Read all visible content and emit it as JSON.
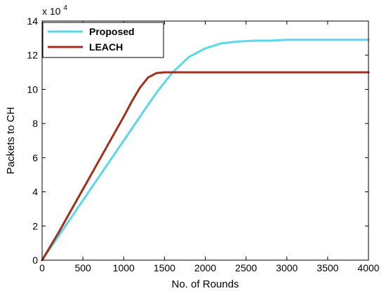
{
  "chart_data": {
    "type": "line",
    "title": "",
    "xlabel": "No. of Rounds",
    "ylabel": "Packets to CH",
    "y_multiplier_label": "x 10",
    "y_multiplier_exponent": "4",
    "xlim": [
      0,
      4000
    ],
    "ylim": [
      0,
      14
    ],
    "xticks": [
      0,
      500,
      1000,
      1500,
      2000,
      2500,
      3000,
      3500,
      4000
    ],
    "yticks": [
      0,
      2,
      4,
      6,
      8,
      10,
      12,
      14
    ],
    "grid": false,
    "legend_position": "top-left",
    "series": [
      {
        "name": "Proposed",
        "color": "#5ad8e8",
        "x": [
          0,
          200,
          400,
          600,
          800,
          1000,
          1200,
          1400,
          1600,
          1800,
          2000,
          2200,
          2400,
          2600,
          2800,
          3000,
          3500,
          4000
        ],
        "y": [
          0,
          1.4,
          2.8,
          4.2,
          5.6,
          7.0,
          8.4,
          9.8,
          11.0,
          11.9,
          12.4,
          12.7,
          12.8,
          12.85,
          12.85,
          12.9,
          12.9,
          12.9
        ]
      },
      {
        "name": "LEACH",
        "color": "#a0301c",
        "x": [
          0,
          200,
          400,
          600,
          800,
          1000,
          1100,
          1200,
          1300,
          1400,
          1500,
          2000,
          2600,
          3000,
          3500,
          4000
        ],
        "y": [
          0,
          1.6,
          3.3,
          5.0,
          6.7,
          8.4,
          9.3,
          10.1,
          10.7,
          10.95,
          11.0,
          11.0,
          11.0,
          11.0,
          11.0,
          11.0
        ]
      }
    ]
  }
}
